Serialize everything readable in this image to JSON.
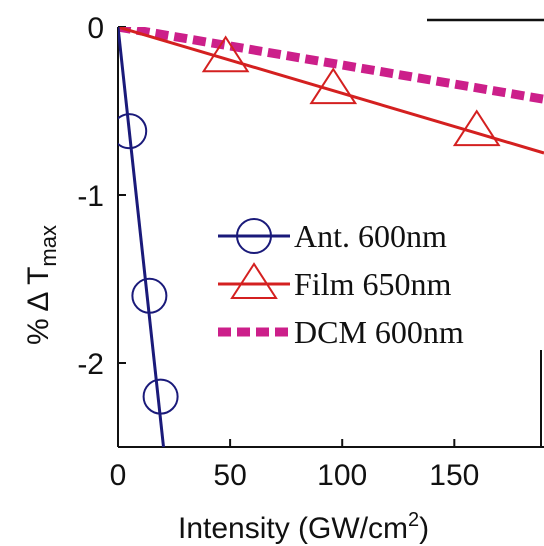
{
  "chart_data": {
    "type": "line",
    "xlabel": "Intensity (GW/cm",
    "xlabel_sup": "2",
    "xlabel_close": ")",
    "ylabel_prefix": "% Δ T",
    "ylabel_sub": "max",
    "xlim": [
      0,
      190
    ],
    "ylim": [
      -2.5,
      0
    ],
    "x_ticks": [
      0,
      50,
      100,
      150
    ],
    "x_tick_labels": [
      "0",
      "50",
      "100",
      "150"
    ],
    "y_ticks": [
      0,
      -1,
      -2
    ],
    "y_tick_labels": [
      "0",
      "-1",
      "-2"
    ],
    "grid": false,
    "legend_position": "center-right",
    "series": [
      {
        "name": "Ant. 600nm",
        "color": "#1a1a7a",
        "line_style": "solid",
        "marker": "circle",
        "fit_line": {
          "x": [
            0,
            20.3
          ],
          "y": [
            0,
            -2.5
          ]
        },
        "points": {
          "x": [
            5,
            14,
            19
          ],
          "y": [
            -0.62,
            -1.6,
            -2.2
          ]
        }
      },
      {
        "name": "Film 650nm",
        "color": "#d42020",
        "line_style": "solid",
        "marker": "triangle",
        "fit_line": {
          "x": [
            0,
            190
          ],
          "y": [
            0,
            -0.75
          ]
        },
        "points": {
          "x": [
            48,
            96,
            160
          ],
          "y": [
            -0.18,
            -0.37,
            -0.62
          ]
        }
      },
      {
        "name": "DCM 600nm",
        "color": "#cc1f8a",
        "line_style": "dashed",
        "marker": "none",
        "fit_line": {
          "x": [
            0,
            190
          ],
          "y": [
            0,
            -0.43
          ]
        },
        "points": {
          "x": [],
          "y": []
        }
      }
    ]
  }
}
